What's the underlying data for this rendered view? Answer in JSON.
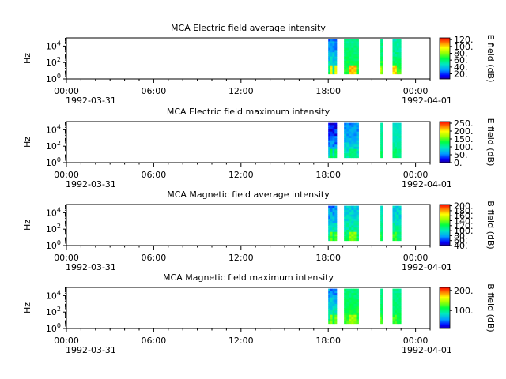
{
  "figure": {
    "background": "#ffffff"
  },
  "chart_data": [
    {
      "type": "heatmap",
      "title": "MCA  Electric field average intensity",
      "ylabel": "Hz",
      "yscale": "log",
      "ylim": [
        1,
        100000
      ],
      "yticks": [
        {
          "value": 1,
          "base": "10",
          "exp": "0"
        },
        {
          "value": 100,
          "base": "10",
          "exp": "2"
        },
        {
          "value": 10000,
          "base": "10",
          "exp": "4"
        }
      ],
      "xlim": [
        "1992-03-31T00:00",
        "1992-04-01T01:00"
      ],
      "xticks": [
        "00:00",
        "06:00",
        "12:00",
        "18:00",
        "00:00"
      ],
      "xdates": [
        "1992-03-31",
        "1992-04-01"
      ],
      "colorbar": {
        "label": "E field (dB)",
        "min": 5,
        "max": 125,
        "ticks": [
          "20.",
          "40.",
          "60.",
          "80.",
          "100.",
          "120."
        ],
        "tick_values": [
          20,
          40,
          60,
          80,
          100,
          120
        ]
      },
      "data_blocks": [
        {
          "start": "1992-03-31T18:00",
          "end": "1992-03-31T18:35",
          "low": 30,
          "high": 60,
          "peak": 100
        },
        {
          "start": "1992-03-31T19:05",
          "end": "1992-03-31T20:05",
          "low": 55,
          "high": 70,
          "peak": 110
        },
        {
          "start": "1992-03-31T21:35",
          "end": "1992-03-31T21:45",
          "low": 55,
          "high": 75,
          "peak": 90
        },
        {
          "start": "1992-03-31T22:25",
          "end": "1992-03-31T23:00",
          "low": 50,
          "high": 70,
          "peak": 105
        }
      ]
    },
    {
      "type": "heatmap",
      "title": "MCA  Electric field maximum intensity",
      "ylabel": "Hz",
      "yscale": "log",
      "ylim": [
        1,
        100000
      ],
      "yticks": [
        {
          "value": 1,
          "base": "10",
          "exp": "0"
        },
        {
          "value": 100,
          "base": "10",
          "exp": "2"
        },
        {
          "value": 10000,
          "base": "10",
          "exp": "4"
        }
      ],
      "xlim": [
        "1992-03-31T00:00",
        "1992-04-01T01:00"
      ],
      "xticks": [
        "00:00",
        "06:00",
        "12:00",
        "18:00",
        "00:00"
      ],
      "xdates": [
        "1992-03-31",
        "1992-04-01"
      ],
      "colorbar": {
        "label": "E field (dB)",
        "min": 0,
        "max": 260,
        "ticks": [
          "0.",
          "50.",
          "100.",
          "150.",
          "200.",
          "250."
        ],
        "tick_values": [
          0,
          50,
          100,
          150,
          200,
          250
        ]
      },
      "data_blocks": [
        {
          "start": "1992-03-31T18:00",
          "end": "1992-03-31T18:35",
          "low": 20,
          "high": 90,
          "peak": 130
        },
        {
          "start": "1992-03-31T19:05",
          "end": "1992-03-31T20:05",
          "low": 55,
          "high": 100,
          "peak": 120
        },
        {
          "start": "1992-03-31T21:35",
          "end": "1992-03-31T21:45",
          "low": 100,
          "high": 120,
          "peak": 130
        },
        {
          "start": "1992-03-31T22:25",
          "end": "1992-03-31T23:00",
          "low": 90,
          "high": 115,
          "peak": 125
        }
      ]
    },
    {
      "type": "heatmap",
      "title": "MCA  Magnetic field average intensity",
      "ylabel": "Hz",
      "yscale": "log",
      "ylim": [
        1,
        100000
      ],
      "yticks": [
        {
          "value": 1,
          "base": "10",
          "exp": "0"
        },
        {
          "value": 100,
          "base": "10",
          "exp": "2"
        },
        {
          "value": 10000,
          "base": "10",
          "exp": "4"
        }
      ],
      "xlim": [
        "1992-03-31T00:00",
        "1992-04-01T01:00"
      ],
      "xticks": [
        "00:00",
        "06:00",
        "12:00",
        "18:00",
        "00:00"
      ],
      "xdates": [
        "1992-03-31",
        "1992-04-01"
      ],
      "colorbar": {
        "label": "B field (dB)",
        "min": 40,
        "max": 205,
        "ticks": [
          "40.",
          "60.",
          "80.",
          "100.",
          "120.",
          "140.",
          "160.",
          "180.",
          "200."
        ],
        "tick_values": [
          40,
          60,
          80,
          100,
          120,
          140,
          160,
          180,
          200
        ]
      },
      "data_blocks": [
        {
          "start": "1992-03-31T18:00",
          "end": "1992-03-31T18:35",
          "low": 75,
          "high": 120,
          "peak": 140
        },
        {
          "start": "1992-03-31T19:05",
          "end": "1992-03-31T20:05",
          "low": 90,
          "high": 120,
          "peak": 150
        },
        {
          "start": "1992-03-31T21:35",
          "end": "1992-03-31T21:45",
          "low": 100,
          "high": 120,
          "peak": 130
        },
        {
          "start": "1992-03-31T22:25",
          "end": "1992-03-31T23:00",
          "low": 90,
          "high": 120,
          "peak": 135
        }
      ]
    },
    {
      "type": "heatmap",
      "title": "MCA  Magnetic field maximum intensity",
      "ylabel": "Hz",
      "yscale": "log",
      "ylim": [
        1,
        100000
      ],
      "yticks": [
        {
          "value": 1,
          "base": "10",
          "exp": "0"
        },
        {
          "value": 100,
          "base": "10",
          "exp": "2"
        },
        {
          "value": 10000,
          "base": "10",
          "exp": "4"
        }
      ],
      "xlim": [
        "1992-03-31T00:00",
        "1992-04-01T01:00"
      ],
      "xticks": [
        "00:00",
        "06:00",
        "12:00",
        "18:00",
        "00:00"
      ],
      "xdates": [
        "1992-03-31",
        "1992-04-01"
      ],
      "colorbar": {
        "label": "B field (dB)",
        "min": 10,
        "max": 215,
        "ticks": [
          "100.",
          "200."
        ],
        "tick_values": [
          100,
          200
        ]
      },
      "data_blocks": [
        {
          "start": "1992-03-31T18:00",
          "end": "1992-03-31T18:35",
          "low": 55,
          "high": 110,
          "peak": 140
        },
        {
          "start": "1992-03-31T19:05",
          "end": "1992-03-31T20:05",
          "low": 100,
          "high": 125,
          "peak": 150
        },
        {
          "start": "1992-03-31T21:35",
          "end": "1992-03-31T21:45",
          "low": 95,
          "high": 120,
          "peak": 135
        },
        {
          "start": "1992-03-31T22:25",
          "end": "1992-03-31T23:00",
          "low": 95,
          "high": 115,
          "peak": 130
        }
      ]
    }
  ]
}
